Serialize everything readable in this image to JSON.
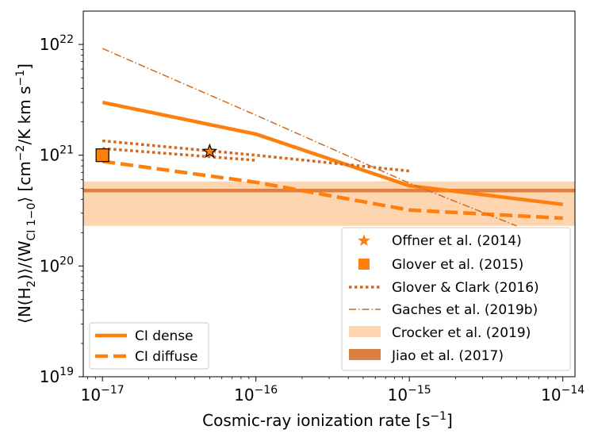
{
  "chart_data": {
    "type": "line",
    "title": "",
    "xlabel": "Cosmic-ray ionization rate [s",
    "xlabel_sup": "−1",
    "xlabel_end": "]",
    "ylabel_parts": [
      "⟨N(H",
      "2",
      ")⟩/⟨W",
      "CI 1−0",
      "⟩ [cm",
      "−2",
      "/K km s",
      "−1",
      "]"
    ],
    "x_scale": "log",
    "y_scale": "log",
    "xlim": [
      7.5e-18,
      1.2e-14
    ],
    "ylim": [
      1e+19,
      2e+22
    ],
    "x_ticks": [
      {
        "value": 1e-17,
        "base": "10",
        "exp": "−17"
      },
      {
        "value": 1e-16,
        "base": "10",
        "exp": "−16"
      },
      {
        "value": 1e-15,
        "base": "10",
        "exp": "−15"
      },
      {
        "value": 1e-14,
        "base": "10",
        "exp": "−14"
      }
    ],
    "y_ticks": [
      {
        "value": 1e+19,
        "base": "10",
        "exp": "19"
      },
      {
        "value": 1e+20,
        "base": "10",
        "exp": "20"
      },
      {
        "value": 1e+21,
        "base": "10",
        "exp": "21"
      },
      {
        "value": 1e+22,
        "base": "10",
        "exp": "22"
      }
    ],
    "series": [
      {
        "id": "ci-dense",
        "name": "CI dense",
        "style": "solid",
        "color": "#ff7f0e",
        "x": [
          1e-17,
          1e-16,
          1e-15,
          1e-14
        ],
        "y": [
          3e+21,
          1.55e+21,
          5.3e+20,
          3.6e+20
        ]
      },
      {
        "id": "ci-diffuse",
        "name": "CI diffuse",
        "style": "dashed",
        "color": "#ff7f0e",
        "x": [
          1e-17,
          1e-16,
          1e-15,
          1e-14
        ],
        "y": [
          8.8e+20,
          5.7e+20,
          3.2e+20,
          2.7e+20
        ]
      },
      {
        "id": "glover-clark-upper",
        "name": "Glover & Clark (2016)",
        "style": "dotted",
        "color": "#d2691e",
        "x": [
          1e-17,
          1e-16,
          1e-15
        ],
        "y": [
          1.35e+21,
          1e+21,
          7.2e+20
        ]
      },
      {
        "id": "glover-clark-lower",
        "name": "Glover & Clark (2016)",
        "style": "dotted",
        "color": "#d2691e",
        "x": [
          1e-17,
          1e-16
        ],
        "y": [
          1.15e+21,
          9e+20
        ]
      },
      {
        "id": "gaches",
        "name": "Gaches et al. (2019b)",
        "style": "dashdot",
        "color": "#d2691e",
        "x": [
          1e-17,
          1e-16,
          1e-15,
          5e-15
        ],
        "y": [
          9.2e+21,
          2.3e+21,
          5.6e+20,
          2.3e+20
        ]
      }
    ],
    "points": [
      {
        "id": "offner",
        "name": "Offner et al. (2014)",
        "marker": "star",
        "color": "#ff7f0e",
        "x": 5e-17,
        "y": 1.08e+21
      },
      {
        "id": "glover2015",
        "name": "Glover et al. (2015)",
        "marker": "square",
        "color": "#ff7f0e",
        "x": 1e-17,
        "y": 1e+21
      }
    ],
    "bands": [
      {
        "id": "crocker",
        "name": "Crocker et al. (2019)",
        "color": "#fdd5b0",
        "y_low": 2.3e+20,
        "y_high": 5.8e+20
      }
    ],
    "hlines": [
      {
        "id": "jiao",
        "name": "Jiao et al. (2017)",
        "color": "#dc7f45",
        "y": 4.8e+20
      }
    ],
    "legend_lines": {
      "placement": "lower-left",
      "entries": [
        {
          "label": "CI dense",
          "style": "solid",
          "color": "#ff7f0e"
        },
        {
          "label": "CI diffuse",
          "style": "dashed",
          "color": "#ff7f0e"
        }
      ]
    },
    "legend_refs": {
      "placement": "lower-right",
      "entries": [
        {
          "label": "Offner et al. (2014)",
          "kind": "star",
          "color": "#ff7f0e"
        },
        {
          "label": "Glover et al. (2015)",
          "kind": "square",
          "color": "#ff7f0e"
        },
        {
          "label": "Glover & Clark (2016)",
          "kind": "dotted",
          "color": "#d2691e"
        },
        {
          "label": "Gaches et al. (2019b)",
          "kind": "dashdot",
          "color": "#d2691e"
        },
        {
          "label": "Crocker et al. (2019)",
          "kind": "band",
          "color": "#fdd5b0"
        },
        {
          "label": "Jiao et al. (2017)",
          "kind": "hline",
          "color": "#dc7f45"
        }
      ]
    }
  }
}
